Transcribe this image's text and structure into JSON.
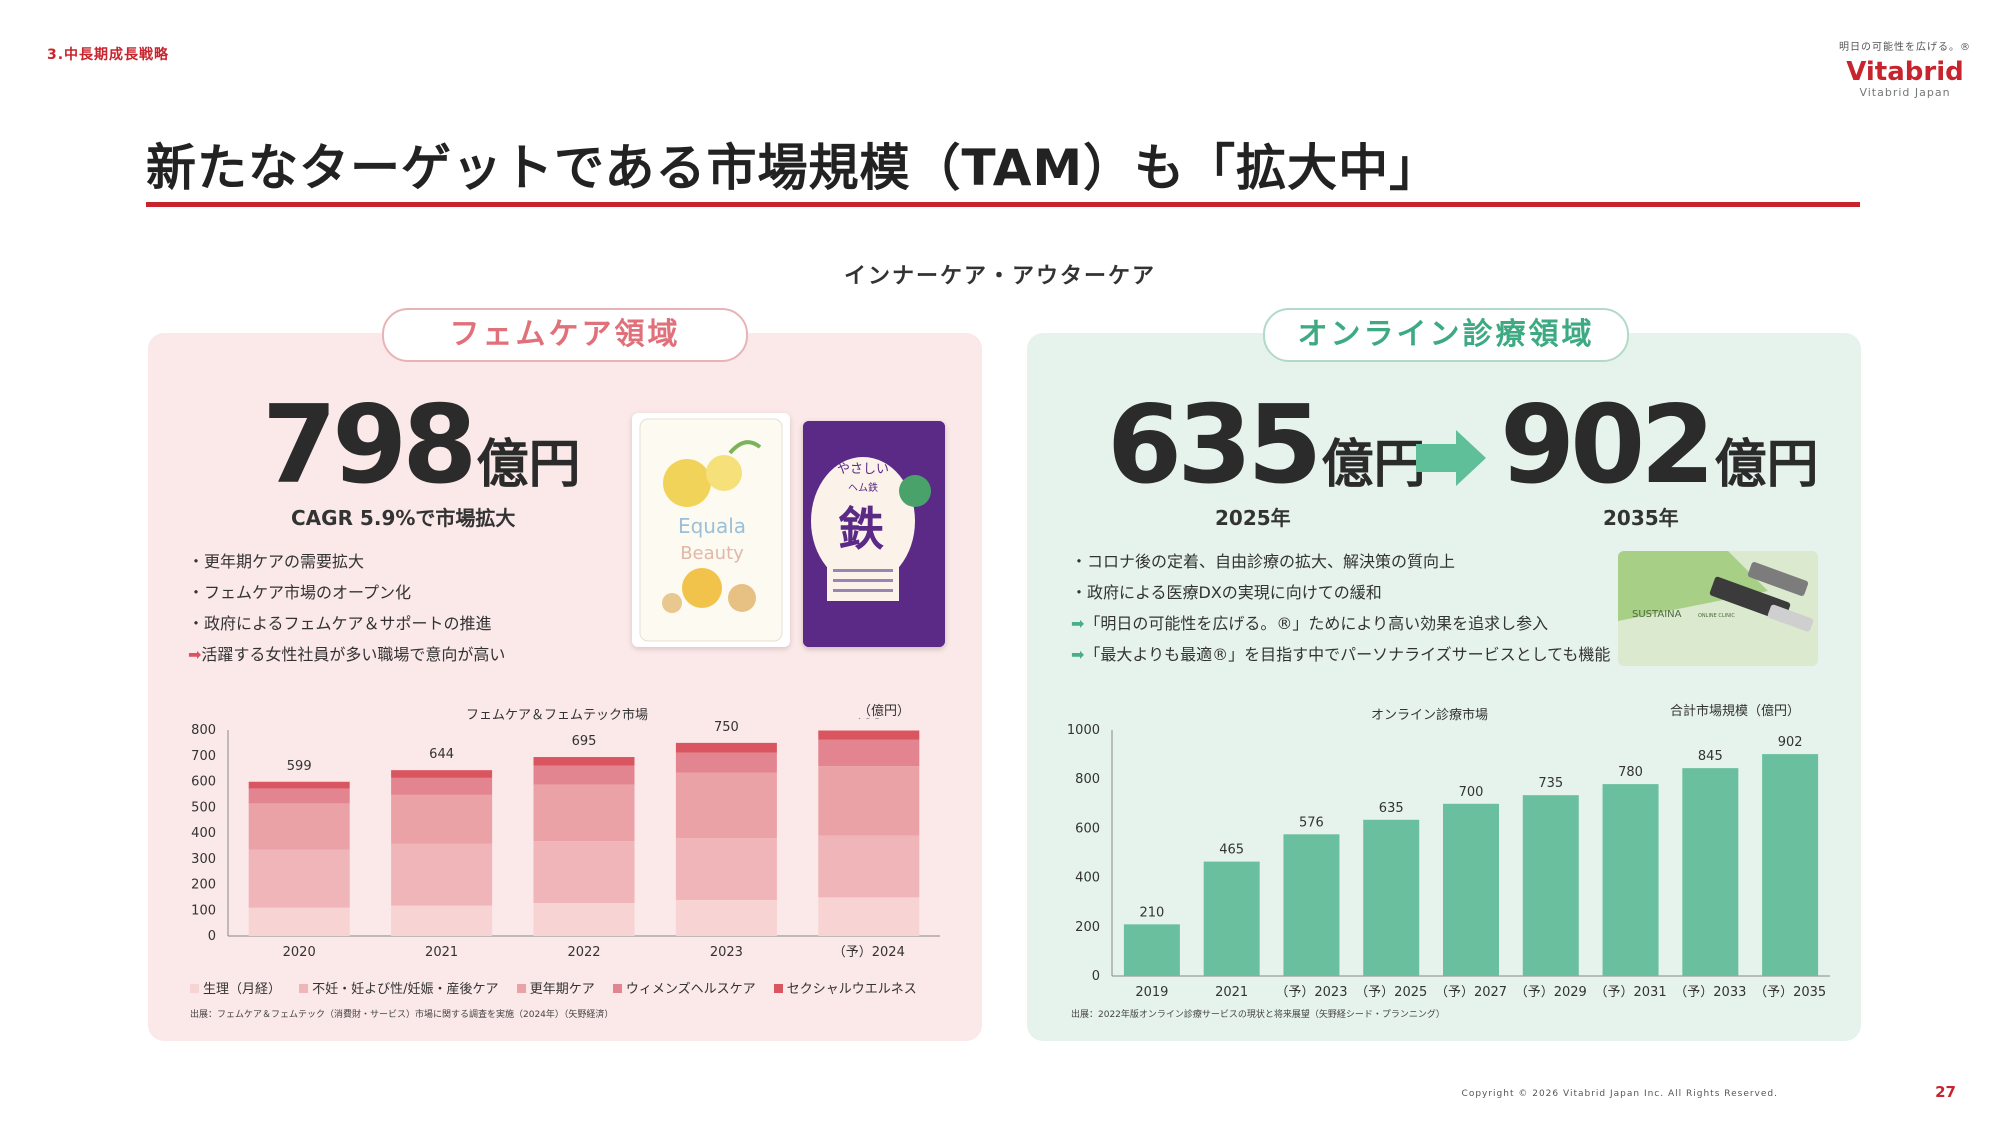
{
  "section_label": "3.中長期成長戦略",
  "logo": {
    "tagline": "明日の可能性を広げる。®",
    "name": "Vitabrid",
    "sub": "Vitabrid Japan"
  },
  "title": "新たなターゲットである市場規模（TAM）も「拡大中」",
  "subtitle": "インナーケア・アウターケア",
  "femcare": {
    "pill": "フェムケア領域",
    "amount": "798",
    "unit": "億円",
    "caption": "CAGR 5.9%で市場拡大",
    "bullets": [
      "・更年期ケアの需要拡大",
      "・フェムケア市場のオープン化",
      "・政府によるフェムケア＆サポートの推進"
    ],
    "arrow_bullet": "活躍する女性社員が多い職場で意向が高い",
    "chart_title": "フェムケア＆フェムテック市場",
    "unit_label": "（億円）",
    "legend": [
      "生理（月経）",
      "不妊・妊よび性/妊娠・産後ケア",
      "更年期ケア",
      "ウィメンズヘルスケア",
      "セクシャルウエルネス"
    ],
    "source": "出展：フェムケア＆フェムテック（消費財・サービス）市場に関する調査を実施（2024年）（矢野経済）"
  },
  "online": {
    "pill": "オンライン診療領域",
    "from_amount": "635",
    "to_amount": "902",
    "unit": "億円",
    "from_year": "2025年",
    "to_year": "2035年",
    "bullets": [
      "・コロナ後の定着、自由診療の拡大、解決策の質向上",
      "・政府による医療DXの実現に向けての緩和"
    ],
    "arrow_bullets": [
      "「明日の可能性を広げる。®」ためにより高い効果を追求し参入",
      "「最大よりも最適®」を目指す中でパーソナライズサービスとしても機能"
    ],
    "chart_title": "オンライン診療市場",
    "total_label": "合計市場規模（億円）",
    "source": "出展：2022年版オンライン診療サービスの現状と将来展望（矢野経シード・プランニング）"
  },
  "products": {
    "equala_brand": "Equala",
    "equala_sub": "Beauty",
    "iron_top": "やさしい",
    "iron_mid": "ヘム鉄",
    "iron_kanji": "鉄",
    "clinic_brand": "SUSTAINA",
    "clinic_sub": "ONLINE CLINIC"
  },
  "footer": {
    "copyright": "Copyright © 2026 Vitabrid Japan Inc. All Rights Reserved.",
    "page": "27"
  },
  "colors": {
    "accent": "#c8242e",
    "pink_panel": "#fbe8e8",
    "green_panel": "#e6f3ed",
    "green_bar": "#6abf9e"
  },
  "chart_data": [
    {
      "type": "bar",
      "stacked": true,
      "title": "フェムケア＆フェムテック市場",
      "ylabel": "（億円）",
      "ylim": [
        0,
        800
      ],
      "yticks": [
        0,
        100,
        200,
        300,
        400,
        500,
        600,
        700,
        800
      ],
      "categories": [
        "2020",
        "2021",
        "2022",
        "2023",
        "（予）2024"
      ],
      "totals": [
        599,
        644,
        695,
        750,
        798
      ],
      "series": [
        {
          "name": "生理（月経）",
          "color": "#f7d3d3",
          "values": [
            110,
            118,
            128,
            140,
            150
          ]
        },
        {
          "name": "不妊・妊よび性/妊娠・産後ケア",
          "color": "#f0b5b8",
          "values": [
            225,
            240,
            240,
            240,
            240
          ]
        },
        {
          "name": "更年期ケア",
          "color": "#eba2a7",
          "values": [
            180,
            190,
            220,
            255,
            270
          ]
        },
        {
          "name": "ウィメンズヘルスケア",
          "color": "#e38590",
          "values": [
            58,
            66,
            74,
            77,
            102
          ]
        },
        {
          "name": "セクシャルウエルネス",
          "color": "#d9555f",
          "values": [
            26,
            30,
            33,
            38,
            36
          ]
        }
      ]
    },
    {
      "type": "bar",
      "title": "オンライン診療市場",
      "ylim": [
        0,
        1000
      ],
      "yticks": [
        0,
        200,
        400,
        600,
        800,
        1000
      ],
      "categories": [
        "2019",
        "2021",
        "（予）2023",
        "（予）2025",
        "（予）2027",
        "（予）2029",
        "（予）2031",
        "（予）2033",
        "（予）2035"
      ],
      "values": [
        210,
        465,
        576,
        635,
        700,
        735,
        780,
        845,
        902
      ],
      "color": "#6abf9e"
    }
  ]
}
